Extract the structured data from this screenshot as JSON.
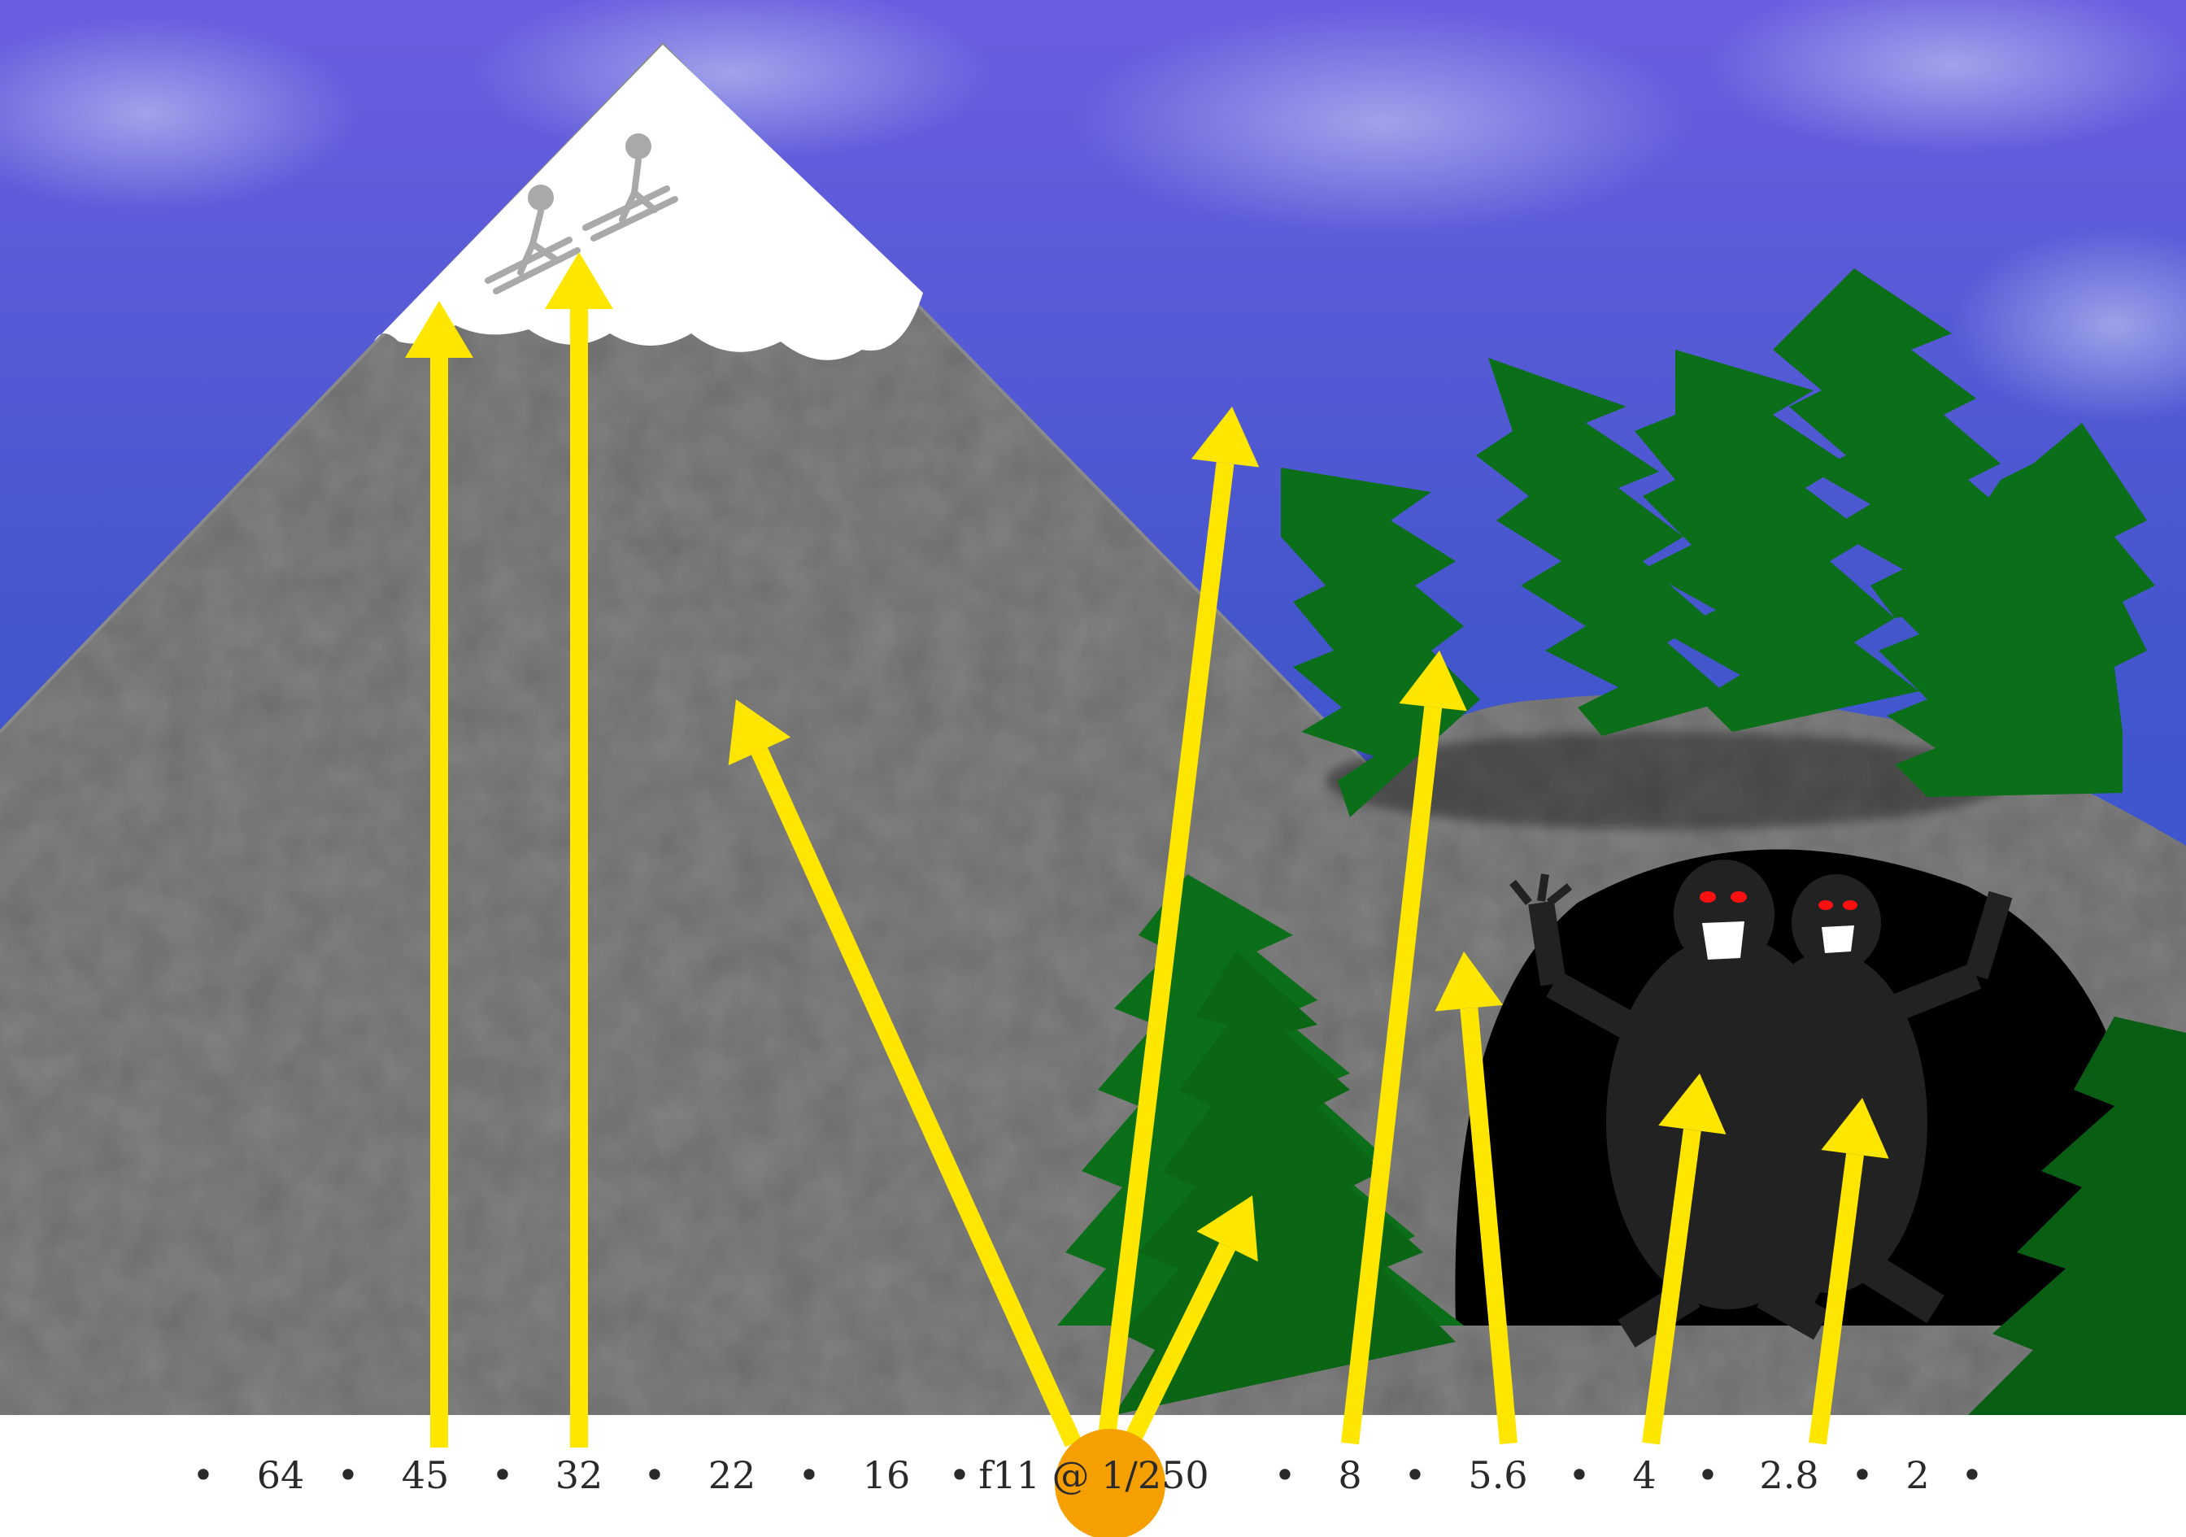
{
  "scale": {
    "stops": [
      "64",
      "45",
      "32",
      "22",
      "16",
      "f11 @ 1/250",
      "8",
      "5.6",
      "4",
      "2.8",
      "2"
    ],
    "separator": "•"
  },
  "arrows": [
    {
      "label": "45",
      "target": "skier"
    },
    {
      "label": "32",
      "target": "skier"
    },
    {
      "label": "22",
      "target": "mountain"
    },
    {
      "label": "f11 @ 1/250",
      "target": "mountain-shadow"
    },
    {
      "label": "f11 @ 1/250",
      "target": "near-trees"
    },
    {
      "label": "8",
      "target": "far-trees"
    },
    {
      "label": "5.6",
      "target": "cave"
    },
    {
      "label": "4",
      "target": "monster"
    },
    {
      "label": "2.8",
      "target": "monster"
    }
  ],
  "colors": {
    "sky": "#4a5fcf",
    "mountain": "#6e6e6e",
    "snow": "#ffffff",
    "tree": "#0b6e18",
    "cave": "#000000",
    "monster": "#222222",
    "arrow": "#ffe600",
    "meter_dot": "#f5a000"
  }
}
